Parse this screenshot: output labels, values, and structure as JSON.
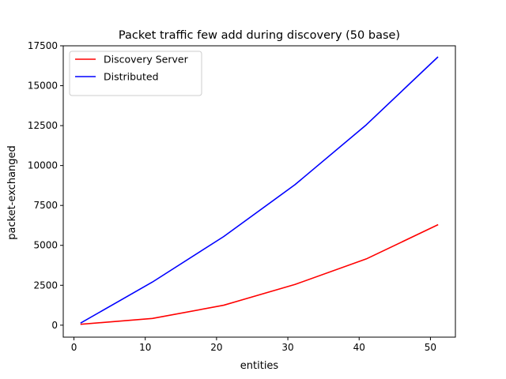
{
  "chart_data": {
    "type": "line",
    "title": "Packet traffic few add during discovery (50 base)",
    "xlabel": "entities",
    "ylabel": "packet-exchanged",
    "xlim": [
      -1.5,
      53.5
    ],
    "ylim": [
      -750,
      17500
    ],
    "xticks": [
      0,
      10,
      20,
      30,
      40,
      50
    ],
    "yticks": [
      0,
      2500,
      5000,
      7500,
      10000,
      12500,
      15000,
      17500
    ],
    "xtick_labels": [
      "0",
      "10",
      "20",
      "30",
      "40",
      "50"
    ],
    "ytick_labels": [
      "0",
      "2500",
      "5000",
      "7500",
      "10000",
      "12500",
      "15000",
      "17500"
    ],
    "grid": false,
    "legend_position": "top-left",
    "x": [
      1,
      11,
      21,
      31,
      41,
      51
    ],
    "series": [
      {
        "name": "Discovery Server",
        "color": "#ff0000",
        "values": [
          60,
          420,
          1250,
          2550,
          4150,
          6280
        ]
      },
      {
        "name": "Distributed",
        "color": "#0000ff",
        "values": [
          150,
          2700,
          5550,
          8800,
          12550,
          16780
        ]
      }
    ]
  }
}
